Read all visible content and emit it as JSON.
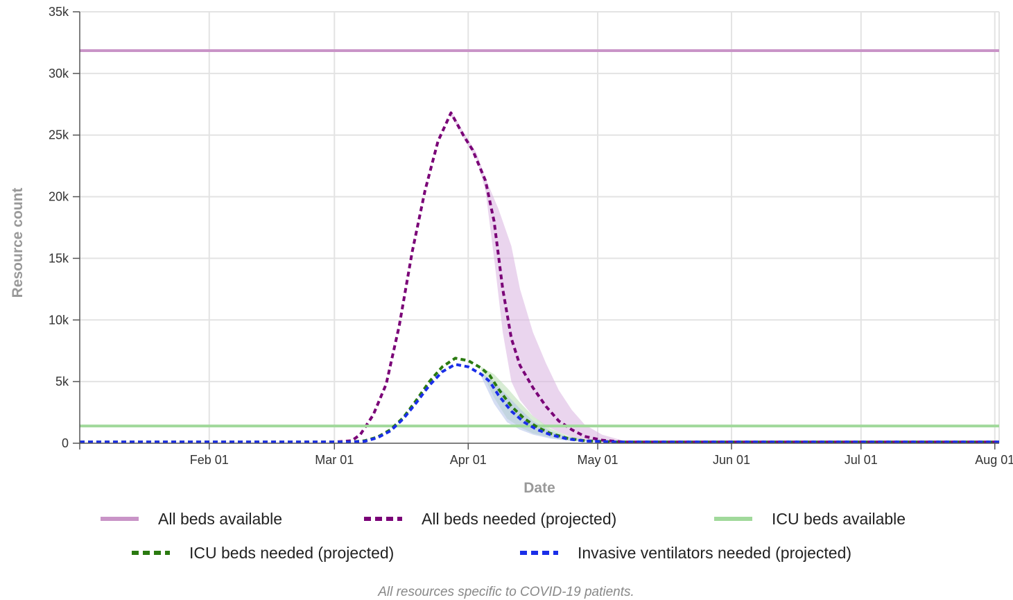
{
  "chart_data": {
    "type": "line",
    "xlabel": "Date",
    "ylabel": "Resource count",
    "footnote": "All resources specific to COVID-19 patients.",
    "x_range": [
      "2020-01-02",
      "2020-08-02"
    ],
    "ylim": [
      0,
      35000
    ],
    "y_ticks": [
      0,
      5000,
      10000,
      15000,
      20000,
      25000,
      30000,
      35000
    ],
    "y_tick_labels": [
      "0",
      "5k",
      "10k",
      "15k",
      "20k",
      "25k",
      "30k",
      "35k"
    ],
    "x_ticks": [
      "2020-02-01",
      "2020-03-01",
      "2020-04-01",
      "2020-05-01",
      "2020-06-01",
      "2020-07-01",
      "2020-08-01"
    ],
    "x_tick_labels": [
      "Feb 01",
      "Mar 01",
      "Apr 01",
      "May 01",
      "Jun 01",
      "Jul 01",
      "Aug 01"
    ],
    "grid": true,
    "legend_position": "bottom",
    "series": [
      {
        "name": "All beds available",
        "style": "solid",
        "color": "#c994c7",
        "points": [
          [
            "2020-01-02",
            31850
          ],
          [
            "2020-08-02",
            31850
          ]
        ]
      },
      {
        "name": "All beds needed (projected)",
        "style": "dashed",
        "color": "#7a0177",
        "points": [
          [
            "2020-01-02",
            100
          ],
          [
            "2020-03-01",
            100
          ],
          [
            "2020-03-05",
            200
          ],
          [
            "2020-03-07",
            700
          ],
          [
            "2020-03-10",
            2300
          ],
          [
            "2020-03-13",
            4800
          ],
          [
            "2020-03-16",
            9500
          ],
          [
            "2020-03-19",
            15500
          ],
          [
            "2020-03-22",
            20500
          ],
          [
            "2020-03-25",
            24500
          ],
          [
            "2020-03-28",
            26800
          ],
          [
            "2020-03-31",
            24900
          ],
          [
            "2020-04-02",
            23800
          ],
          [
            "2020-04-05",
            21300
          ],
          [
            "2020-04-07",
            18000
          ],
          [
            "2020-04-09",
            12500
          ],
          [
            "2020-04-11",
            8500
          ],
          [
            "2020-04-13",
            6300
          ],
          [
            "2020-04-16",
            4500
          ],
          [
            "2020-04-19",
            3000
          ],
          [
            "2020-04-22",
            1800
          ],
          [
            "2020-04-25",
            1100
          ],
          [
            "2020-04-28",
            550
          ],
          [
            "2020-05-02",
            250
          ],
          [
            "2020-05-07",
            100
          ],
          [
            "2020-08-02",
            100
          ]
        ]
      },
      {
        "name": "ICU beds available",
        "style": "solid",
        "color": "#a1d99b",
        "points": [
          [
            "2020-01-02",
            1400
          ],
          [
            "2020-08-02",
            1400
          ]
        ]
      },
      {
        "name": "ICU beds needed (projected)",
        "style": "dashed",
        "color": "#2a7a10",
        "points": [
          [
            "2020-01-02",
            100
          ],
          [
            "2020-03-05",
            100
          ],
          [
            "2020-03-08",
            200
          ],
          [
            "2020-03-11",
            500
          ],
          [
            "2020-03-14",
            1100
          ],
          [
            "2020-03-17",
            2100
          ],
          [
            "2020-03-20",
            3500
          ],
          [
            "2020-03-23",
            5000
          ],
          [
            "2020-03-26",
            6200
          ],
          [
            "2020-03-29",
            6900
          ],
          [
            "2020-04-01",
            6700
          ],
          [
            "2020-04-04",
            6100
          ],
          [
            "2020-04-06",
            5500
          ],
          [
            "2020-04-08",
            4400
          ],
          [
            "2020-04-11",
            3000
          ],
          [
            "2020-04-14",
            2000
          ],
          [
            "2020-04-17",
            1300
          ],
          [
            "2020-04-20",
            800
          ],
          [
            "2020-04-24",
            400
          ],
          [
            "2020-04-28",
            200
          ],
          [
            "2020-05-05",
            100
          ],
          [
            "2020-08-02",
            100
          ]
        ]
      },
      {
        "name": "Invasive ventilators needed (projected)",
        "style": "dashed",
        "color": "#1a2ee8",
        "points": [
          [
            "2020-01-02",
            100
          ],
          [
            "2020-03-05",
            100
          ],
          [
            "2020-03-08",
            150
          ],
          [
            "2020-03-11",
            450
          ],
          [
            "2020-03-14",
            1000
          ],
          [
            "2020-03-17",
            2000
          ],
          [
            "2020-03-20",
            3300
          ],
          [
            "2020-03-23",
            4700
          ],
          [
            "2020-03-26",
            5800
          ],
          [
            "2020-03-29",
            6400
          ],
          [
            "2020-04-01",
            6200
          ],
          [
            "2020-04-04",
            5600
          ],
          [
            "2020-04-06",
            5000
          ],
          [
            "2020-04-08",
            3900
          ],
          [
            "2020-04-11",
            2600
          ],
          [
            "2020-04-14",
            1700
          ],
          [
            "2020-04-17",
            1100
          ],
          [
            "2020-04-20",
            700
          ],
          [
            "2020-04-24",
            350
          ],
          [
            "2020-04-28",
            180
          ],
          [
            "2020-05-05",
            100
          ],
          [
            "2020-08-02",
            100
          ]
        ]
      }
    ],
    "uncertainty_bands": [
      {
        "series": "All beds needed (projected)",
        "color": "#d8b3e0",
        "upper": [
          [
            "2020-03-28",
            27000
          ],
          [
            "2020-03-31",
            25200
          ],
          [
            "2020-04-03",
            23500
          ],
          [
            "2020-04-05",
            21500
          ],
          [
            "2020-04-08",
            19000
          ],
          [
            "2020-04-11",
            16000
          ],
          [
            "2020-04-13",
            12500
          ],
          [
            "2020-04-16",
            9000
          ],
          [
            "2020-04-19",
            6500
          ],
          [
            "2020-04-22",
            4300
          ],
          [
            "2020-04-25",
            2700
          ],
          [
            "2020-04-28",
            1500
          ],
          [
            "2020-05-02",
            700
          ],
          [
            "2020-05-07",
            200
          ]
        ],
        "lower": [
          [
            "2020-05-07",
            100
          ],
          [
            "2020-05-02",
            150
          ],
          [
            "2020-04-28",
            250
          ],
          [
            "2020-04-25",
            500
          ],
          [
            "2020-04-22",
            900
          ],
          [
            "2020-04-19",
            1400
          ],
          [
            "2020-04-16",
            2200
          ],
          [
            "2020-04-13",
            3500
          ],
          [
            "2020-04-11",
            5000
          ],
          [
            "2020-04-09",
            9000
          ],
          [
            "2020-04-07",
            15000
          ],
          [
            "2020-04-05",
            20500
          ],
          [
            "2020-04-03",
            23000
          ],
          [
            "2020-03-31",
            24700
          ],
          [
            "2020-03-28",
            26600
          ]
        ]
      },
      {
        "series": "ICU beds needed (projected)",
        "color": "#b8dcb0",
        "upper": [
          [
            "2020-04-04",
            6200
          ],
          [
            "2020-04-07",
            5600
          ],
          [
            "2020-04-10",
            4500
          ],
          [
            "2020-04-13",
            3300
          ],
          [
            "2020-04-16",
            2200
          ],
          [
            "2020-04-20",
            1200
          ],
          [
            "2020-04-24",
            600
          ],
          [
            "2020-04-28",
            300
          ],
          [
            "2020-05-05",
            120
          ]
        ],
        "lower": [
          [
            "2020-05-05",
            100
          ],
          [
            "2020-04-28",
            150
          ],
          [
            "2020-04-24",
            250
          ],
          [
            "2020-04-20",
            450
          ],
          [
            "2020-04-16",
            800
          ],
          [
            "2020-04-13",
            1300
          ],
          [
            "2020-04-10",
            2000
          ],
          [
            "2020-04-07",
            3700
          ],
          [
            "2020-04-04",
            5900
          ]
        ]
      },
      {
        "series": "Invasive ventilators needed (projected)",
        "color": "#b3c2ea",
        "upper": [
          [
            "2020-04-04",
            5700
          ],
          [
            "2020-04-07",
            5000
          ],
          [
            "2020-04-10",
            3900
          ],
          [
            "2020-04-13",
            2800
          ],
          [
            "2020-04-16",
            1800
          ],
          [
            "2020-04-20",
            1000
          ],
          [
            "2020-04-24",
            500
          ],
          [
            "2020-04-28",
            250
          ],
          [
            "2020-05-05",
            110
          ]
        ],
        "lower": [
          [
            "2020-05-05",
            100
          ],
          [
            "2020-04-28",
            130
          ],
          [
            "2020-04-24",
            200
          ],
          [
            "2020-04-20",
            380
          ],
          [
            "2020-04-16",
            700
          ],
          [
            "2020-04-13",
            1100
          ],
          [
            "2020-04-10",
            1700
          ],
          [
            "2020-04-07",
            3200
          ],
          [
            "2020-04-04",
            5400
          ]
        ]
      }
    ]
  }
}
